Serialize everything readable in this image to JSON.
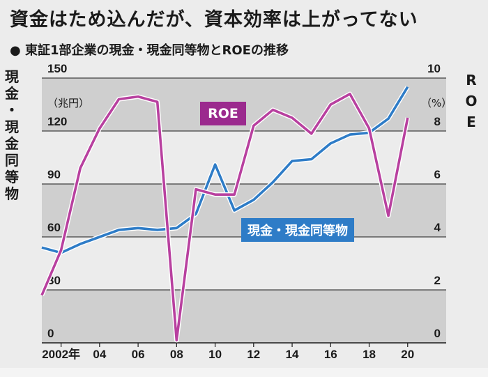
{
  "title": "資金はため込んだが、資本効率は上がってない",
  "subtitle": "● 東証1部企業の現金・現金同等物とROEの推移",
  "left_axis_label": "現金・現金同等物",
  "right_axis_label": "ROE",
  "left_unit": "（兆円）",
  "right_unit": "（%）",
  "callouts": {
    "roe": "ROE",
    "cash": "現金・現金同等物"
  },
  "colors": {
    "roe": "#b8409f",
    "cash": "#2e7cc7",
    "roe_label_bg": "#9b2a8e",
    "cash_label_bg": "#2e7cc7"
  },
  "chart_data": {
    "type": "line",
    "x": [
      2001,
      2002,
      2003,
      2004,
      2005,
      2006,
      2007,
      2008,
      2009,
      2010,
      2011,
      2012,
      2013,
      2014,
      2015,
      2016,
      2017,
      2018,
      2019,
      2020,
      2021
    ],
    "x_tick_values": [
      2002,
      2004,
      2006,
      2008,
      2010,
      2012,
      2014,
      2016,
      2018,
      2020
    ],
    "x_tick_labels": [
      "2002年",
      "04",
      "06",
      "08",
      "10",
      "12",
      "14",
      "16",
      "18",
      "20"
    ],
    "left_axis": {
      "range": [
        0,
        150
      ],
      "ticks": [
        0,
        30,
        60,
        90,
        120,
        150
      ],
      "unit": "兆円"
    },
    "right_axis": {
      "range": [
        0,
        10
      ],
      "ticks": [
        0,
        2,
        4,
        6,
        8,
        10
      ],
      "unit": "%"
    },
    "series": [
      {
        "name": "現金・現金同等物",
        "axis": "left",
        "values": [
          54,
          51,
          56,
          60,
          64,
          65,
          64,
          65,
          73,
          101,
          75,
          81,
          91,
          103,
          104,
          113,
          118,
          119,
          127,
          145,
          null
        ]
      },
      {
        "name": "ROE",
        "axis": "right",
        "values": [
          1.8,
          3.5,
          6.6,
          8.1,
          9.2,
          9.3,
          9.1,
          0.1,
          5.8,
          5.6,
          5.6,
          8.2,
          8.8,
          8.5,
          7.9,
          9.0,
          9.4,
          8.1,
          4.8,
          8.5,
          null
        ]
      }
    ]
  }
}
